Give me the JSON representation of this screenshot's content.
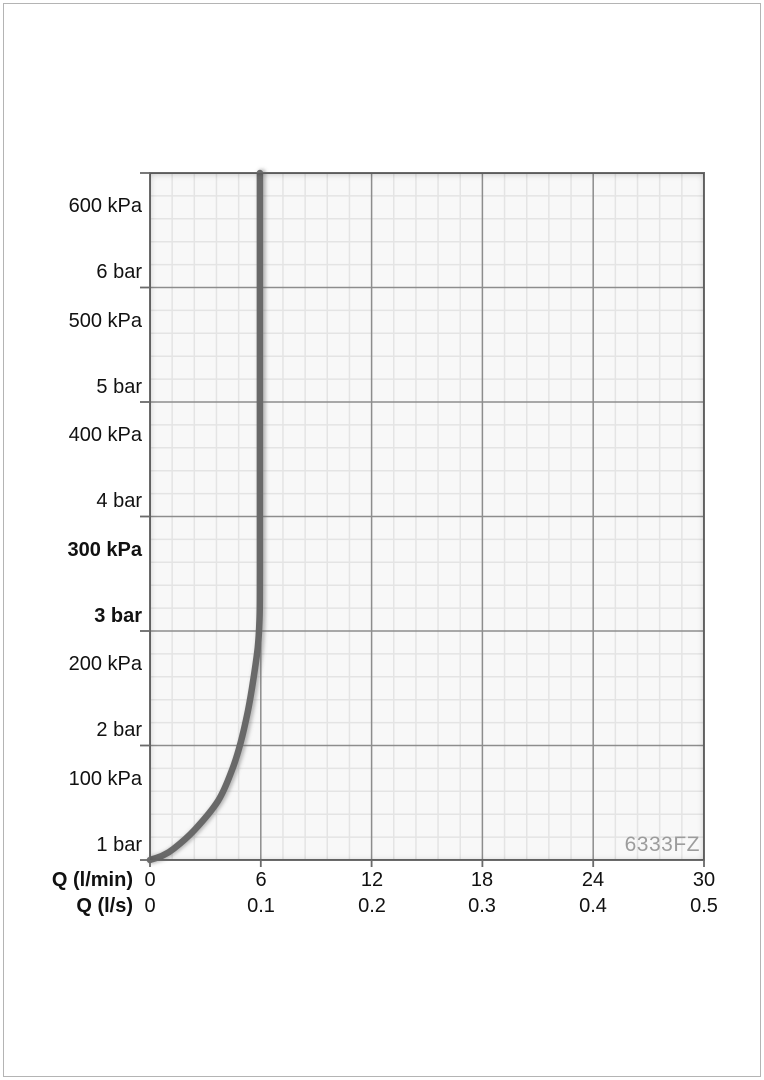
{
  "page": {
    "background": "#ffffff",
    "border_color": "#b4b4b4"
  },
  "chart_data": {
    "type": "line",
    "title": "",
    "watermark": "6333FZ",
    "x_axis": {
      "label_row1": "Q (l/min)",
      "label_row2": "Q (l/s)",
      "range_lmin": [
        0,
        30
      ],
      "minor_per_major": 5,
      "ticks": [
        {
          "lmin": "0",
          "ls": "0"
        },
        {
          "lmin": "6",
          "ls": "0.1"
        },
        {
          "lmin": "12",
          "ls": "0.2"
        },
        {
          "lmin": "18",
          "ls": "0.3"
        },
        {
          "lmin": "24",
          "ls": "0.4"
        },
        {
          "lmin": "30",
          "ls": "0.5"
        }
      ]
    },
    "y_axis": {
      "range_kpa": [
        0,
        600
      ],
      "minor_per_major": 5,
      "ticks": [
        {
          "kpa": "600 kPa",
          "bar": "6 bar",
          "value_kpa": 600,
          "bold": false
        },
        {
          "kpa": "500 kPa",
          "bar": "5 bar",
          "value_kpa": 500,
          "bold": false
        },
        {
          "kpa": "400 kPa",
          "bar": "4 bar",
          "value_kpa": 400,
          "bold": false
        },
        {
          "kpa": "300 kPa",
          "bar": "3 bar",
          "value_kpa": 300,
          "bold": true
        },
        {
          "kpa": "200 kPa",
          "bar": "2 bar",
          "value_kpa": 200,
          "bold": false
        },
        {
          "kpa": "100 kPa",
          "bar": "1 bar",
          "value_kpa": 100,
          "bold": false
        }
      ]
    },
    "series": [
      {
        "name": "flow-pressure-curve",
        "points_lmin_kpa": [
          [
            0,
            0
          ],
          [
            0.7,
            4
          ],
          [
            1.3,
            10
          ],
          [
            2.4,
            26
          ],
          [
            3.7,
            52
          ],
          [
            4.45,
            79
          ],
          [
            4.9,
            102
          ],
          [
            5.3,
            130
          ],
          [
            5.6,
            158
          ],
          [
            5.83,
            185
          ],
          [
            5.93,
            210
          ],
          [
            5.95,
            250
          ],
          [
            5.95,
            420
          ],
          [
            5.95,
            600
          ]
        ]
      }
    ],
    "colors": {
      "curve": "#696969",
      "major_grid": "#8d8d8d",
      "minor_grid": "#e4e4e4",
      "axis": "#6a6a6a",
      "plot_background": "#f8f8f8",
      "watermark": "#9c9c9c",
      "label": "#111111"
    }
  }
}
